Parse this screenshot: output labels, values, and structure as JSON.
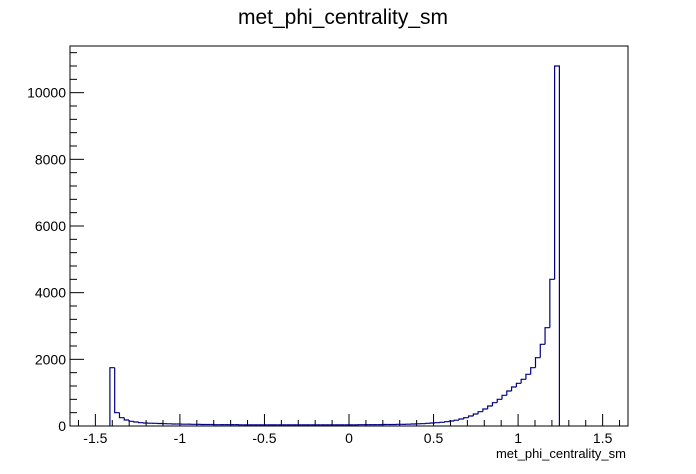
{
  "chart_data": {
    "type": "histogram",
    "title": "met_phi_centrality_sm",
    "xlabel": "met_phi_centrality_sm",
    "ylabel": "",
    "xlim": [
      -1.65,
      1.65
    ],
    "ylim": [
      0,
      11400
    ],
    "x_ticks": [
      -1.5,
      -1,
      -0.5,
      0,
      0.5,
      1,
      1.5
    ],
    "x_tick_labels": [
      "-1.5",
      "-1",
      "-0.5",
      "0",
      "0.5",
      "1",
      "1.5"
    ],
    "y_ticks": [
      0,
      2000,
      4000,
      6000,
      8000,
      10000
    ],
    "y_tick_labels": [
      "0",
      "2000",
      "4000",
      "6000",
      "8000",
      "10000"
    ],
    "bin_start": -1.414,
    "bin_width": 0.02828,
    "values": [
      1750,
      400,
      250,
      180,
      140,
      120,
      100,
      90,
      85,
      80,
      75,
      70,
      65,
      60,
      60,
      55,
      55,
      50,
      50,
      45,
      45,
      45,
      40,
      40,
      40,
      40,
      40,
      35,
      35,
      35,
      35,
      35,
      35,
      35,
      35,
      35,
      35,
      35,
      35,
      35,
      35,
      35,
      35,
      35,
      35,
      35,
      35,
      35,
      35,
      35,
      35,
      35,
      40,
      40,
      40,
      40,
      40,
      45,
      45,
      45,
      50,
      50,
      55,
      60,
      65,
      70,
      80,
      90,
      100,
      110,
      130,
      150,
      175,
      210,
      250,
      300,
      360,
      430,
      510,
      600,
      700,
      800,
      920,
      1050,
      1170,
      1280,
      1400,
      1550,
      1750,
      2050,
      2450,
      2950,
      4400,
      10800
    ],
    "line_color": "#000080",
    "grid": false,
    "legend": "none"
  }
}
